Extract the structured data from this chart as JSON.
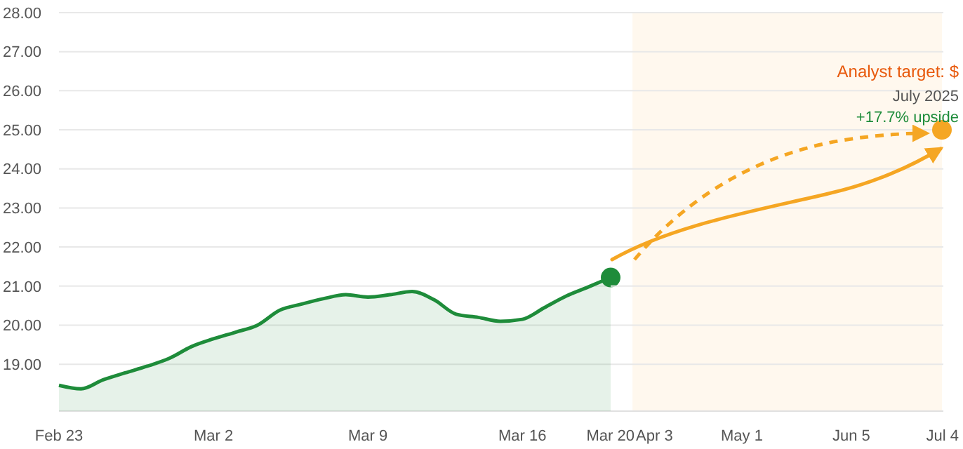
{
  "chart_data": [
    {
      "type": "area",
      "xlim": [
        "2025-02-23",
        "2025-03-20"
      ],
      "xticks": [
        {
          "value": "2025-02-23",
          "label": "Feb 23"
        },
        {
          "value": "2025-03-02",
          "label": "Mar 2"
        },
        {
          "value": "2025-03-09",
          "label": "Mar 9"
        },
        {
          "value": "2025-03-16",
          "label": "Mar 16"
        },
        {
          "value": "2025-03-20",
          "label": "Mar 20"
        }
      ],
      "ylim": [
        17.8,
        28
      ],
      "yticks": [
        {
          "value": 19,
          "label": "19.00"
        },
        {
          "value": 20,
          "label": "20.00"
        },
        {
          "value": 21,
          "label": "21.00"
        },
        {
          "value": 22,
          "label": "22.00"
        },
        {
          "value": 23,
          "label": "23.00"
        },
        {
          "value": 24,
          "label": "24.00"
        },
        {
          "value": 25,
          "label": "25.00"
        },
        {
          "value": 26,
          "label": "26.00"
        },
        {
          "value": 27,
          "label": "27.00"
        },
        {
          "value": 28,
          "label": "28.00"
        }
      ],
      "grid": "y",
      "series": [
        {
          "color": "#1e8c3a",
          "x": [
            "2025-02-23",
            "2025-02-24",
            "2025-02-25",
            "2025-02-26",
            "2025-02-27",
            "2025-02-28",
            "2025-03-01",
            "2025-03-02",
            "2025-03-03",
            "2025-03-04",
            "2025-03-05",
            "2025-03-06",
            "2025-03-07",
            "2025-03-08",
            "2025-03-09",
            "2025-03-10",
            "2025-03-11",
            "2025-03-12",
            "2025-03-13",
            "2025-03-14",
            "2025-03-15",
            "2025-03-16",
            "2025-03-17",
            "2025-03-18",
            "2025-03-19",
            "2025-03-20"
          ],
          "values": [
            18.46,
            18.37,
            18.6,
            18.78,
            18.95,
            19.15,
            19.45,
            19.65,
            19.82,
            20.0,
            20.38,
            20.54,
            20.68,
            20.78,
            20.72,
            20.78,
            20.86,
            20.65,
            20.28,
            20.2,
            20.1,
            20.15,
            20.45,
            20.75,
            20.98,
            21.22
          ]
        },
        {
          "type": "scatter",
          "color": "#1e8c3a",
          "x": [
            "2025-03-20"
          ],
          "values": [
            21.22
          ]
        }
      ]
    },
    {
      "type": "scatter",
      "xlim": [
        "2025-03-20",
        "2025-07-04"
      ],
      "xticks": [
        {
          "value": "2025-04-03",
          "label": "Apr 3"
        },
        {
          "value": "2025-05-01",
          "label": "May 1"
        },
        {
          "value": "2025-06-05",
          "label": "Jun 5"
        },
        {
          "value": "2025-07-04",
          "label": "Jul 4"
        }
      ],
      "ylim": [
        17.8,
        28
      ],
      "yticks": [
        19,
        20,
        21,
        22,
        23,
        24,
        25,
        26,
        27,
        28
      ],
      "tick_labels": "x",
      "grid": "y",
      "bands": [
        {
          "axis": "x",
          "from": "2025-03-27",
          "to": "2025-07-04",
          "color": "#fff8ee"
        }
      ],
      "series": [
        {
          "color": "#f5a623",
          "x": [
            "2025-07-04"
          ],
          "values": [
            25.0
          ]
        }
      ],
      "annotations": [
        "Analyst target: $",
        "July 2025",
        "+17.7% upside"
      ]
    }
  ]
}
